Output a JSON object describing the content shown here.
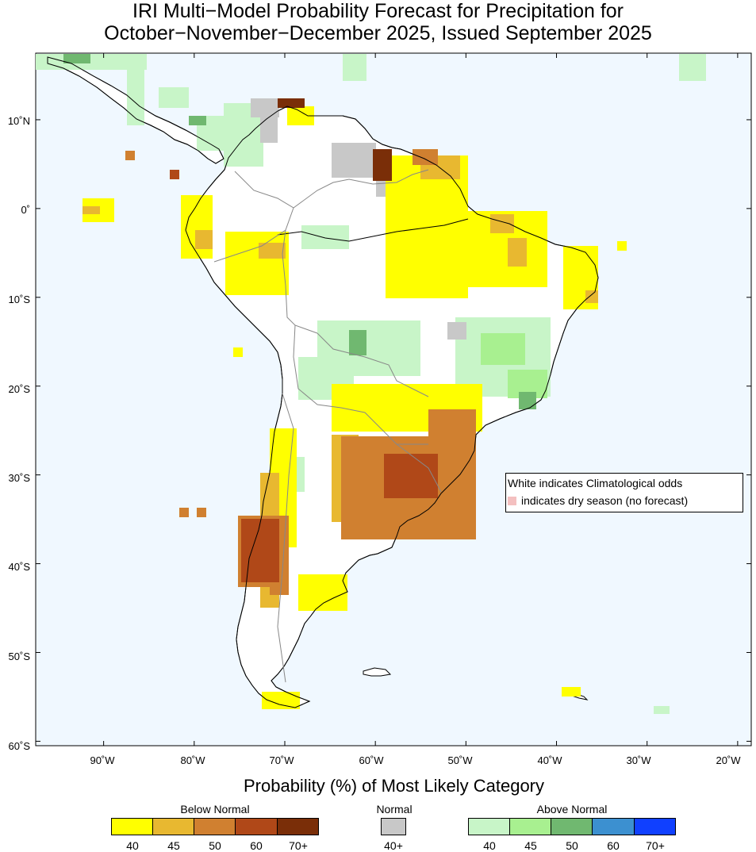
{
  "title": {
    "line1": "IRI Multi−Model Probability Forecast for Precipitation for",
    "line2": "October−November−December 2025, Issued September 2025"
  },
  "axes": {
    "lat_labels": [
      "10˚N",
      "0˚",
      "10˚S",
      "20˚S",
      "30˚S",
      "40˚S",
      "50˚S",
      "60˚S"
    ],
    "lat_values": [
      10,
      0,
      -10,
      -20,
      -30,
      -40,
      -50,
      -60
    ],
    "lon_labels": [
      "90˚W",
      "80˚W",
      "70˚W",
      "60˚W",
      "50˚W",
      "40˚W",
      "30˚W",
      "20˚W"
    ],
    "lon_values": [
      -90,
      -80,
      -70,
      -60,
      -50,
      -40,
      -30,
      -20
    ],
    "lon_range": [
      -97.5,
      -18.5
    ],
    "lat_range": [
      -60.5,
      17.5
    ]
  },
  "legend_box": {
    "line1": "White indicates Climatological odds",
    "line2": "indicates dry season (no forecast)",
    "dry_color": "#f4c0c0"
  },
  "colorbar": {
    "title": "Probability (%) of Most Likely Category",
    "below": {
      "label": "Below Normal",
      "ticks": [
        "40",
        "45",
        "50",
        "60",
        "70+"
      ],
      "colors": [
        "#ffff00",
        "#e8b830",
        "#d08030",
        "#b04818",
        "#7a2e08"
      ]
    },
    "normal": {
      "label": "Normal",
      "ticks": [
        "40+"
      ],
      "colors": [
        "#c8c8c8"
      ]
    },
    "above": {
      "label": "Above Normal",
      "ticks": [
        "40",
        "45",
        "50",
        "60",
        "70+"
      ],
      "colors": [
        "#c8f5c8",
        "#a8f090",
        "#70b870",
        "#3c90d0",
        "#1040ff"
      ]
    }
  },
  "colors": {
    "ocean": "#f0f8ff",
    "land": "#ffffff",
    "coast": "#000000",
    "border": "#888888"
  }
}
